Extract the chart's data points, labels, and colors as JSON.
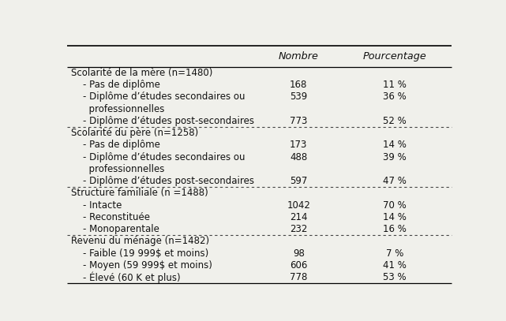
{
  "rows": [
    {
      "label": "Scolarité de la mère (n=1480)",
      "nombre": "",
      "pourcentage": "",
      "section_header": true,
      "multiline": false
    },
    {
      "label": "    - Pas de diplôme",
      "nombre": "168",
      "pourcentage": "11 %",
      "section_header": false,
      "multiline": false
    },
    {
      "label": "    - Diplôme d’études secondaires ou",
      "label2": "      professionnelles",
      "nombre": "539",
      "pourcentage": "36 %",
      "section_header": false,
      "multiline": true
    },
    {
      "label": "    - Diplôme d’études post-secondaires",
      "nombre": "773",
      "pourcentage": "52 %",
      "section_header": false,
      "multiline": false
    },
    {
      "label": "Scolarité du père (n=1258)",
      "nombre": "",
      "pourcentage": "",
      "section_header": true,
      "multiline": false
    },
    {
      "label": "    - Pas de diplôme",
      "nombre": "173",
      "pourcentage": "14 %",
      "section_header": false,
      "multiline": false
    },
    {
      "label": "    - Diplôme d’études secondaires ou",
      "label2": "      professionnelles",
      "nombre": "488",
      "pourcentage": "39 %",
      "section_header": false,
      "multiline": true
    },
    {
      "label": "    - Diplôme d’études post-secondaires",
      "nombre": "597",
      "pourcentage": "47 %",
      "section_header": false,
      "multiline": false
    },
    {
      "label": "Structure familiale (n =1488)",
      "nombre": "",
      "pourcentage": "",
      "section_header": true,
      "multiline": false
    },
    {
      "label": "    - Intacte",
      "nombre": "1042",
      "pourcentage": "70 %",
      "section_header": false,
      "multiline": false
    },
    {
      "label": "    - Reconstituée",
      "nombre": "214",
      "pourcentage": "14 %",
      "section_header": false,
      "multiline": false
    },
    {
      "label": "    - Monoparentale",
      "nombre": "232",
      "pourcentage": "16 %",
      "section_header": false,
      "multiline": false
    },
    {
      "label": "Revenu du ménage (n=1482)",
      "nombre": "",
      "pourcentage": "",
      "section_header": true,
      "multiline": false
    },
    {
      "label": "    - Faible (19 999$ et moins)",
      "nombre": "98",
      "pourcentage": "7 %",
      "section_header": false,
      "multiline": false
    },
    {
      "label": "    - Moyen (59 999$ et moins)",
      "nombre": "606",
      "pourcentage": "41 %",
      "section_header": false,
      "multiline": false
    },
    {
      "label": "    - Élevé (60 K et plus)",
      "nombre": "778",
      "pourcentage": "53 %",
      "section_header": false,
      "multiline": false
    }
  ],
  "col_headers": [
    "Nombre",
    "Pourcentage"
  ],
  "bg_color": "#f0f0eb",
  "text_color": "#111111",
  "font_size": 8.5,
  "header_font_size": 9.2,
  "divider_rows": [
    4,
    8,
    12
  ]
}
